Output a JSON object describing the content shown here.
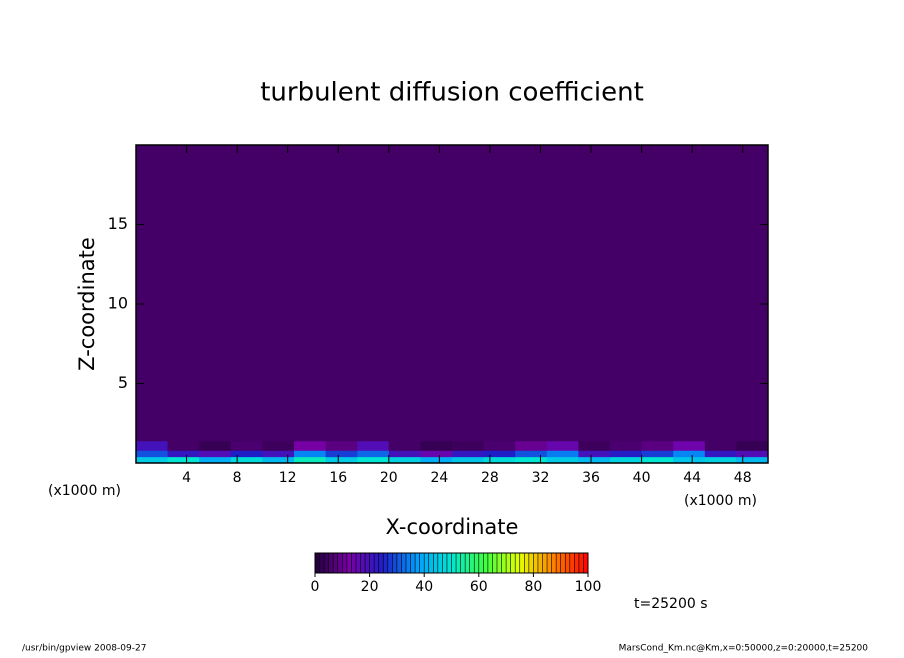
{
  "chart_data": {
    "type": "heatmap",
    "title": "turbulent diffusion coefficient",
    "xlabel": "X-coordinate",
    "ylabel": "Z-coordinate",
    "x_unit": "(x1000 m)",
    "x_edges": [
      0,
      2.5,
      5,
      7.5,
      10,
      12.5,
      15,
      17.5,
      20,
      22.5,
      25,
      27.5,
      30,
      32.5,
      35,
      37.5,
      40,
      42.5,
      45,
      47.5,
      50
    ],
    "z_edges": [
      0,
      0.4,
      0.8,
      1.4,
      20
    ],
    "values": [
      [
        45,
        50,
        40,
        48,
        42,
        52,
        45,
        50,
        46,
        40,
        44,
        48,
        50,
        45,
        42,
        47,
        50,
        44,
        46,
        42
      ],
      [
        30,
        22,
        18,
        25,
        20,
        35,
        28,
        32,
        20,
        15,
        22,
        25,
        30,
        34,
        20,
        24,
        28,
        35,
        22,
        18
      ],
      [
        20,
        5,
        3,
        6,
        4,
        12,
        8,
        18,
        5,
        3,
        4,
        6,
        10,
        15,
        4,
        6,
        8,
        14,
        5,
        3
      ],
      [
        5,
        5,
        5,
        5,
        5,
        5,
        5,
        5,
        5,
        5,
        5,
        5,
        5,
        5,
        5,
        5,
        5,
        5,
        5,
        5
      ]
    ],
    "xlim": [
      0,
      50
    ],
    "ylim": [
      0,
      20
    ],
    "xticks": [
      4,
      8,
      12,
      16,
      20,
      24,
      28,
      32,
      36,
      40,
      44,
      48
    ],
    "yticks": [
      5,
      10,
      15
    ],
    "clim": [
      0,
      100
    ],
    "cticks": [
      0,
      20,
      40,
      60,
      80,
      100
    ],
    "colormap": [
      "#20003a",
      "#7a00a8",
      "#1e1ec8",
      "#00a0ff",
      "#00e6d2",
      "#40ff40",
      "#e6ff00",
      "#ff8000",
      "#ff0000"
    ],
    "time_label": "t=25200 s",
    "footer_left": "/usr/bin/gpview   2008-09-27",
    "footer_right": "MarsCond_Km.nc@Km,x=0:50000,z=0:20000,t=25200"
  }
}
